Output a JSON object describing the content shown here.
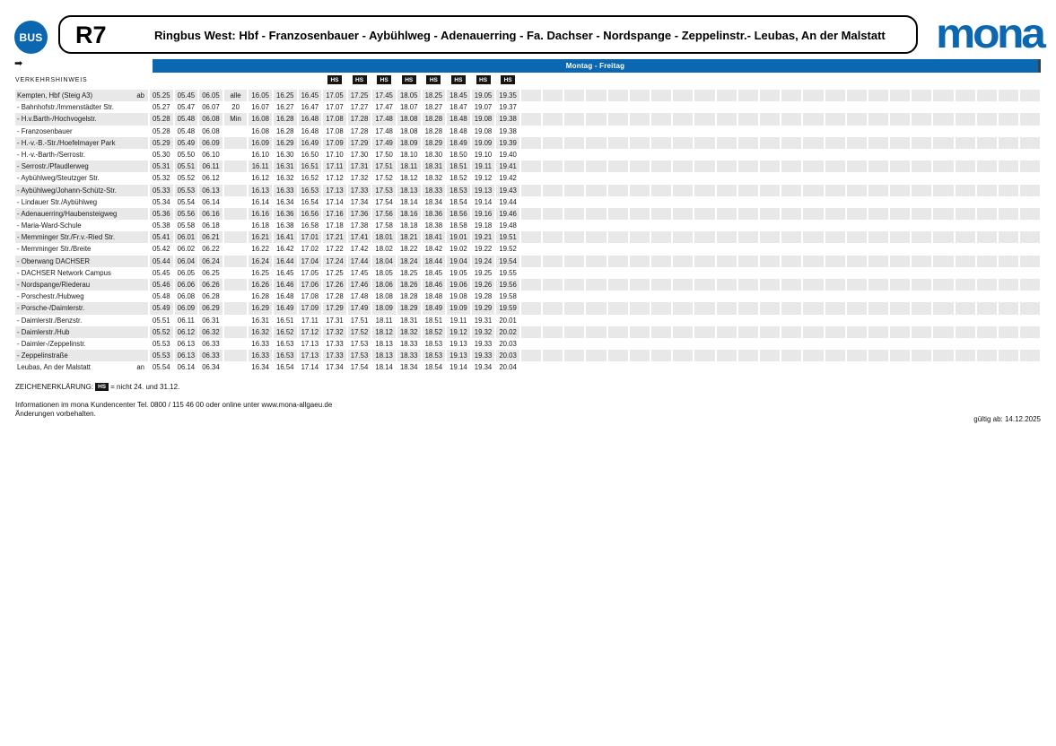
{
  "colors": {
    "brand_blue": "#0b67b0",
    "stripe_grey": "#e8e8e8",
    "badge_black": "#141414"
  },
  "header": {
    "bus_badge": "BUS",
    "route_number": "R7",
    "route_title": "Ringbus West: Hbf - Franzosenbauer - Aybühlweg - Adenauerring - Fa. Dachser - Nordspange - Zeppelinstr.- Leubas, An der Malstatt",
    "brand": "mona",
    "service_days": "Montag - Freitag",
    "direction_arrow": "➡",
    "verkehrshinweis_label": "VERKEHRSHINWEIS"
  },
  "timetable": {
    "hs_label": "HS",
    "hs_afternoon_columns": [
      3,
      4,
      5,
      6,
      7,
      8,
      9,
      10
    ],
    "filler_columns": 24,
    "rows": [
      {
        "name": "Kempten, Hbf (Steig A3)",
        "tag": "ab",
        "morning": [
          "05.25",
          "05.45",
          "06.05"
        ],
        "note": "alle",
        "afternoon": [
          "16.05",
          "16.25",
          "16.45",
          "17.05",
          "17.25",
          "17.45",
          "18.05",
          "18.25",
          "18.45",
          "19.05",
          "19.35"
        ]
      },
      {
        "name": "- Bahnhofstr./Immenstädter Str.",
        "tag": "",
        "morning": [
          "05.27",
          "05.47",
          "06.07"
        ],
        "note": "20",
        "afternoon": [
          "16.07",
          "16.27",
          "16.47",
          "17.07",
          "17.27",
          "17.47",
          "18.07",
          "18.27",
          "18.47",
          "19.07",
          "19.37"
        ]
      },
      {
        "name": "- H.v.Barth-/Hochvogelstr.",
        "tag": "",
        "morning": [
          "05.28",
          "05.48",
          "06.08"
        ],
        "note": "Min",
        "afternoon": [
          "16.08",
          "16.28",
          "16.48",
          "17.08",
          "17.28",
          "17.48",
          "18.08",
          "18.28",
          "18.48",
          "19.08",
          "19.38"
        ]
      },
      {
        "name": "- Franzosenbauer",
        "tag": "",
        "morning": [
          "05.28",
          "05.48",
          "06.08"
        ],
        "note": "",
        "afternoon": [
          "16.08",
          "16.28",
          "16.48",
          "17.08",
          "17.28",
          "17.48",
          "18.08",
          "18.28",
          "18.48",
          "19.08",
          "19.38"
        ]
      },
      {
        "name": "- H.-v.-B.-Str./Hoefelmayer Park",
        "tag": "",
        "morning": [
          "05.29",
          "05.49",
          "06.09"
        ],
        "note": "",
        "afternoon": [
          "16.09",
          "16.29",
          "16.49",
          "17.09",
          "17.29",
          "17.49",
          "18.09",
          "18.29",
          "18.49",
          "19.09",
          "19.39"
        ]
      },
      {
        "name": "- H.-v.-Barth-/Serrostr.",
        "tag": "",
        "morning": [
          "05.30",
          "05.50",
          "06.10"
        ],
        "note": "",
        "afternoon": [
          "16.10",
          "16.30",
          "16.50",
          "17.10",
          "17.30",
          "17.50",
          "18.10",
          "18.30",
          "18.50",
          "19.10",
          "19.40"
        ]
      },
      {
        "name": "- Serrostr./Pfaudlerweg",
        "tag": "",
        "morning": [
          "05.31",
          "05.51",
          "06.11"
        ],
        "note": "",
        "afternoon": [
          "16.11",
          "16.31",
          "16.51",
          "17.11",
          "17.31",
          "17.51",
          "18.11",
          "18.31",
          "18.51",
          "19.11",
          "19.41"
        ]
      },
      {
        "name": "- Aybühlweg/Steutzger Str.",
        "tag": "",
        "morning": [
          "05.32",
          "05.52",
          "06.12"
        ],
        "note": "",
        "afternoon": [
          "16.12",
          "16.32",
          "16.52",
          "17.12",
          "17.32",
          "17.52",
          "18.12",
          "18.32",
          "18.52",
          "19.12",
          "19.42"
        ]
      },
      {
        "name": "- Aybühlweg/Johann-Schütz-Str.",
        "tag": "",
        "morning": [
          "05.33",
          "05.53",
          "06.13"
        ],
        "note": "",
        "afternoon": [
          "16.13",
          "16.33",
          "16.53",
          "17.13",
          "17.33",
          "17.53",
          "18.13",
          "18.33",
          "18.53",
          "19.13",
          "19.43"
        ]
      },
      {
        "name": "- Lindauer Str./Aybühlweg",
        "tag": "",
        "morning": [
          "05.34",
          "05.54",
          "06.14"
        ],
        "note": "",
        "afternoon": [
          "16.14",
          "16.34",
          "16.54",
          "17.14",
          "17.34",
          "17.54",
          "18.14",
          "18.34",
          "18.54",
          "19.14",
          "19.44"
        ]
      },
      {
        "name": "- Adenauerring/Haubensteigweg",
        "tag": "",
        "morning": [
          "05.36",
          "05.56",
          "06.16"
        ],
        "note": "",
        "afternoon": [
          "16.16",
          "16.36",
          "16.56",
          "17.16",
          "17.36",
          "17.56",
          "18.16",
          "18.36",
          "18.56",
          "19.16",
          "19.46"
        ]
      },
      {
        "name": "- Maria-Ward-Schule",
        "tag": "",
        "morning": [
          "05.38",
          "05.58",
          "06.18"
        ],
        "note": "",
        "afternoon": [
          "16.18",
          "16.38",
          "16.58",
          "17.18",
          "17.38",
          "17.58",
          "18.18",
          "18.38",
          "18.58",
          "19.18",
          "19.48"
        ]
      },
      {
        "name": "- Memminger Str./Fr.v.-Ried Str.",
        "tag": "",
        "morning": [
          "05.41",
          "06.01",
          "06.21"
        ],
        "note": "",
        "afternoon": [
          "16.21",
          "16.41",
          "17.01",
          "17.21",
          "17.41",
          "18.01",
          "18.21",
          "18.41",
          "19.01",
          "19.21",
          "19.51"
        ]
      },
      {
        "name": "- Memminger Str./Breite",
        "tag": "",
        "morning": [
          "05.42",
          "06.02",
          "06.22"
        ],
        "note": "",
        "afternoon": [
          "16.22",
          "16.42",
          "17.02",
          "17.22",
          "17.42",
          "18.02",
          "18.22",
          "18.42",
          "19.02",
          "19.22",
          "19.52"
        ]
      },
      {
        "name": "- Oberwang DACHSER",
        "tag": "",
        "morning": [
          "05.44",
          "06.04",
          "06.24"
        ],
        "note": "",
        "afternoon": [
          "16.24",
          "16.44",
          "17.04",
          "17.24",
          "17.44",
          "18.04",
          "18.24",
          "18.44",
          "19.04",
          "19.24",
          "19.54"
        ]
      },
      {
        "name": "- DACHSER Network Campus",
        "tag": "",
        "morning": [
          "05.45",
          "06.05",
          "06.25"
        ],
        "note": "",
        "afternoon": [
          "16.25",
          "16.45",
          "17.05",
          "17.25",
          "17.45",
          "18.05",
          "18.25",
          "18.45",
          "19.05",
          "19.25",
          "19.55"
        ]
      },
      {
        "name": "- Nordspange/Riederau",
        "tag": "",
        "morning": [
          "05.46",
          "06.06",
          "06.26"
        ],
        "note": "",
        "afternoon": [
          "16.26",
          "16.46",
          "17.06",
          "17.26",
          "17.46",
          "18.06",
          "18.26",
          "18.46",
          "19.06",
          "19.26",
          "19.56"
        ]
      },
      {
        "name": "- Porschestr./Hubweg",
        "tag": "",
        "morning": [
          "05.48",
          "06.08",
          "06.28"
        ],
        "note": "",
        "afternoon": [
          "16.28",
          "16.48",
          "17.08",
          "17.28",
          "17.48",
          "18.08",
          "18.28",
          "18.48",
          "19.08",
          "19.28",
          "19.58"
        ]
      },
      {
        "name": "- Porsche-/Daimlerstr.",
        "tag": "",
        "morning": [
          "05.49",
          "06.09",
          "06.29"
        ],
        "note": "",
        "afternoon": [
          "16.29",
          "16.49",
          "17.09",
          "17.29",
          "17.49",
          "18.09",
          "18.29",
          "18.49",
          "19.09",
          "19.29",
          "19.59"
        ]
      },
      {
        "name": "- Daimlerstr./Benzstr.",
        "tag": "",
        "morning": [
          "05.51",
          "06.11",
          "06.31"
        ],
        "note": "",
        "afternoon": [
          "16.31",
          "16.51",
          "17.11",
          "17.31",
          "17.51",
          "18.11",
          "18.31",
          "18.51",
          "19.11",
          "19.31",
          "20.01"
        ]
      },
      {
        "name": "- Daimlerstr./Hub",
        "tag": "",
        "morning": [
          "05.52",
          "06.12",
          "06.32"
        ],
        "note": "",
        "afternoon": [
          "16.32",
          "16.52",
          "17.12",
          "17.32",
          "17.52",
          "18.12",
          "18.32",
          "18.52",
          "19.12",
          "19.32",
          "20.02"
        ]
      },
      {
        "name": "- Daimler-/Zeppelinstr.",
        "tag": "",
        "morning": [
          "05.53",
          "06.13",
          "06.33"
        ],
        "note": "",
        "afternoon": [
          "16.33",
          "16.53",
          "17.13",
          "17.33",
          "17.53",
          "18.13",
          "18.33",
          "18.53",
          "19.13",
          "19.33",
          "20.03"
        ]
      },
      {
        "name": "- Zeppelinstraße",
        "tag": "",
        "morning": [
          "05.53",
          "06.13",
          "06.33"
        ],
        "note": "",
        "afternoon": [
          "16.33",
          "16.53",
          "17.13",
          "17.33",
          "17.53",
          "18.13",
          "18.33",
          "18.53",
          "19.13",
          "19.33",
          "20.03"
        ]
      },
      {
        "name": "Leubas, An der Malstatt",
        "tag": "an",
        "morning": [
          "05.54",
          "06.14",
          "06.34"
        ],
        "note": "",
        "afternoon": [
          "16.34",
          "16.54",
          "17.14",
          "17.34",
          "17.54",
          "18.14",
          "18.34",
          "18.54",
          "19.14",
          "19.34",
          "20.04"
        ]
      }
    ]
  },
  "legend": {
    "label": "ZEICHENERKLÄRUNG:",
    "badge": "HS",
    "meaning": "= nicht 24. und 31.12."
  },
  "footer": {
    "info_line1": "Informationen im mona Kundencenter Tel. 0800 / 115 46 00 oder online unter www.mona-allgaeu.de",
    "info_line2": "Änderungen vorbehalten.",
    "valid_from": "gültig ab: 14.12.2025"
  }
}
